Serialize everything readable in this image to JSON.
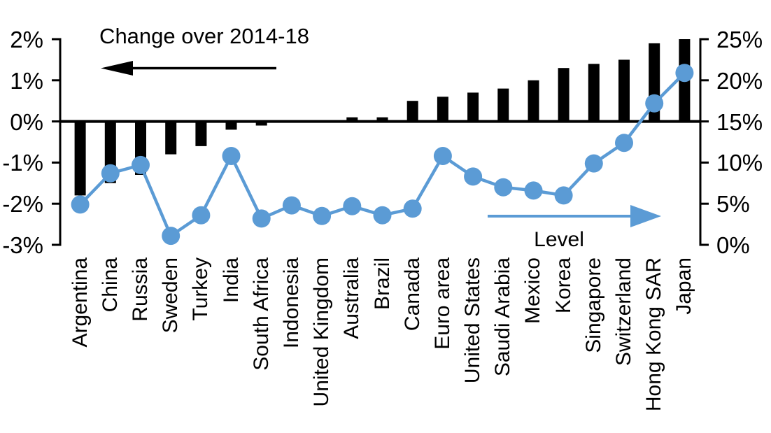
{
  "chart_data": {
    "type": "bar+line combo (dual axis)",
    "categories": [
      "Argentina",
      "China",
      "Russia",
      "Sweden",
      "Turkey",
      "India",
      "South Africa",
      "Indonesia",
      "United Kingdom",
      "Australia",
      "Brazil",
      "Canada",
      "Euro area",
      "United States",
      "Saudi Arabia",
      "Mexico",
      "Korea",
      "Singapore",
      "Switzerland",
      "Hong Kong SAR",
      "Japan"
    ],
    "series": [
      {
        "name": "Change over 2014-18",
        "type": "bar",
        "axis": "left",
        "color": "#000000",
        "values": [
          -1.8,
          -1.5,
          -1.3,
          -0.8,
          -0.6,
          -0.2,
          -0.1,
          0.0,
          0.0,
          0.1,
          0.1,
          0.5,
          0.6,
          0.7,
          0.8,
          1.0,
          1.3,
          1.4,
          1.5,
          1.9,
          2.0
        ]
      },
      {
        "name": "Level",
        "type": "line",
        "axis": "right",
        "color": "#5B9BD5",
        "marker": "circle",
        "values": [
          4.9,
          8.7,
          9.7,
          1.1,
          3.6,
          10.8,
          3.2,
          4.8,
          3.5,
          4.7,
          3.6,
          4.4,
          10.8,
          8.3,
          7.0,
          6.6,
          6.0,
          9.9,
          12.4,
          17.2,
          20.9
        ]
      }
    ],
    "left_axis": {
      "tick_labels": [
        "2%",
        "1%",
        "0%",
        "-1%",
        "-2%",
        "-3%"
      ],
      "tick_values": [
        2,
        1,
        0,
        -1,
        -2,
        -3
      ],
      "range": [
        -3,
        2
      ],
      "grid": false
    },
    "right_axis": {
      "tick_labels": [
        "25%",
        "20%",
        "15%",
        "10%",
        "5%",
        "0%"
      ],
      "tick_values": [
        25,
        20,
        15,
        10,
        5,
        0
      ],
      "range": [
        0,
        25
      ],
      "grid": false
    },
    "annotations": [
      {
        "text": "Change over 2014-18",
        "arrow": "left",
        "color": "#000000"
      },
      {
        "text": "Level",
        "arrow": "right",
        "color": "#5B9BD5"
      }
    ],
    "background": "#FFFFFF"
  }
}
